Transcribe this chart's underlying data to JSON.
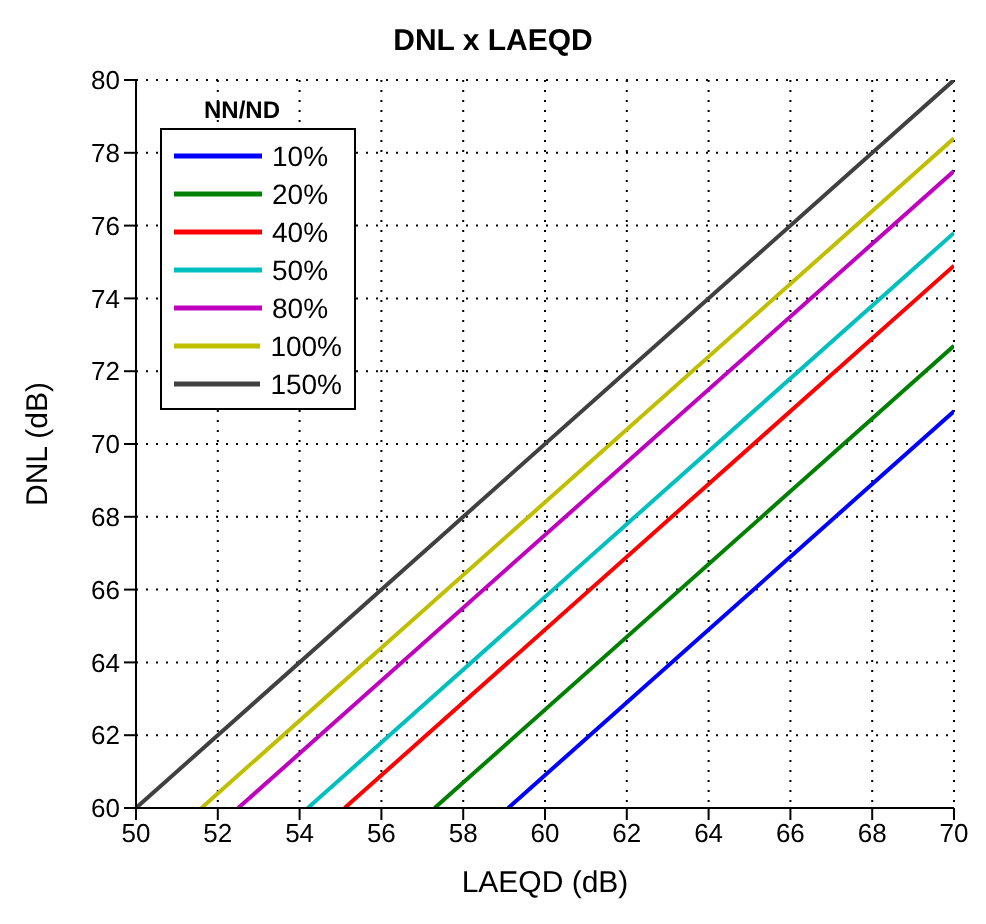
{
  "chart_data": {
    "type": "line",
    "title": "DNL x LAEQD",
    "xlabel": "LAEQD (dB)",
    "ylabel": "DNL (dB)",
    "legend_title": "NN/ND",
    "xlim": [
      50,
      70
    ],
    "xticks": [
      50,
      52,
      54,
      56,
      58,
      60,
      62,
      64,
      66,
      68,
      70
    ],
    "ylim": [
      60,
      80
    ],
    "yticks": [
      60,
      62,
      64,
      66,
      68,
      70,
      72,
      74,
      76,
      78,
      80
    ],
    "grid": true,
    "legend": "top left",
    "marker": "none",
    "line_style": "solid",
    "series": [
      {
        "name": "10%",
        "color": "#0000ff",
        "x": [
          59.1,
          70
        ],
        "values": [
          60,
          70.9
        ]
      },
      {
        "name": "20%",
        "color": "#008000",
        "x": [
          57.3,
          70
        ],
        "values": [
          60,
          72.7
        ]
      },
      {
        "name": "40%",
        "color": "#ff0000",
        "x": [
          55.1,
          70
        ],
        "values": [
          60,
          74.9
        ]
      },
      {
        "name": "50%",
        "color": "#00bfbf",
        "x": [
          54.2,
          70
        ],
        "values": [
          60,
          75.8
        ]
      },
      {
        "name": "80%",
        "color": "#bf00bf",
        "x": [
          52.5,
          70
        ],
        "values": [
          60,
          77.5
        ]
      },
      {
        "name": "100%",
        "color": "#bfbf00",
        "x": [
          51.6,
          70
        ],
        "values": [
          60,
          78.4
        ]
      },
      {
        "name": "150%",
        "color": "#404040",
        "x": [
          50,
          70
        ],
        "values": [
          60,
          80
        ]
      }
    ]
  }
}
